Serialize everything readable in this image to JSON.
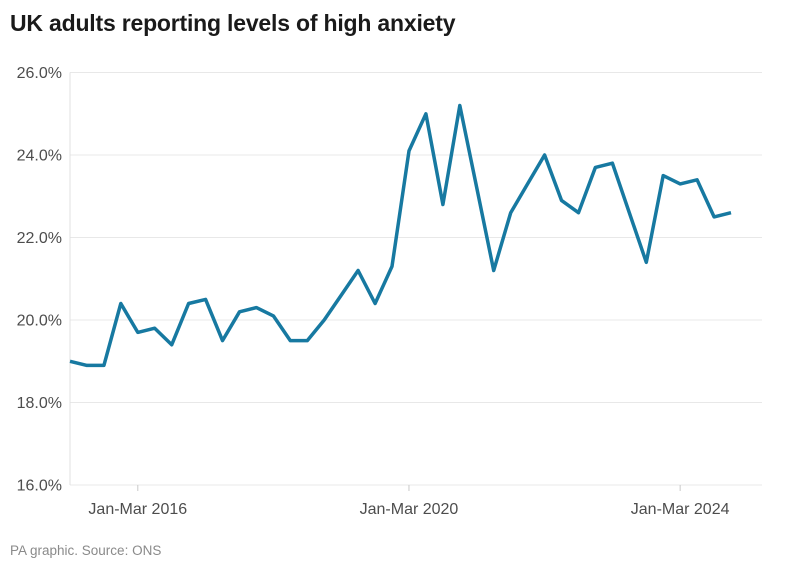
{
  "page": {
    "title": "UK adults reporting levels of high anxiety",
    "footer": "PA graphic. Source: ONS"
  },
  "colors": {
    "line": "#1779a1",
    "grid": "#e8e8e8",
    "axis_line": "#e0e0e0",
    "tick_mark": "#c9c9c9",
    "axis_text": "#4d4d4d",
    "title_text": "#1a1a1a",
    "footer_text": "#8a8a8a",
    "background": "#ffffff"
  },
  "chart_data": {
    "type": "line",
    "title": "UK adults reporting levels of high anxiety",
    "xlabel": "",
    "ylabel": "",
    "y_unit": "%",
    "ylim": [
      16.0,
      26.0
    ],
    "grid": "horizontal",
    "legend": "none",
    "frequency": "quarterly",
    "y_ticks": [
      26,
      24,
      22,
      20,
      18,
      16
    ],
    "y_tick_labels": [
      "26.0%",
      "24.0%",
      "22.0%",
      "20.0%",
      "18.0%",
      "16.0%"
    ],
    "x_tick_labels": [
      "Jan-Mar 2016",
      "Jan-Mar 2020",
      "Jan-Mar 2024"
    ],
    "categories": [
      "Jan-Mar 2015",
      "Apr-Jun 2015",
      "Jul-Sep 2015",
      "Oct-Dec 2015",
      "Jan-Mar 2016",
      "Apr-Jun 2016",
      "Jul-Sep 2016",
      "Oct-Dec 2016",
      "Jan-Mar 2017",
      "Apr-Jun 2017",
      "Jul-Sep 2017",
      "Oct-Dec 2017",
      "Jan-Mar 2018",
      "Apr-Jun 2018",
      "Jul-Sep 2018",
      "Oct-Dec 2018",
      "Jan-Mar 2019",
      "Apr-Jun 2019",
      "Jul-Sep 2019",
      "Oct-Dec 2019",
      "Jan-Mar 2020",
      "Apr-Jun 2020",
      "Jul-Sep 2020",
      "Oct-Dec 2020",
      "Jan-Mar 2021",
      "Apr-Jun 2021",
      "Jul-Sep 2021",
      "Oct-Dec 2021",
      "Jan-Mar 2022",
      "Apr-Jun 2022",
      "Jul-Sep 2022",
      "Oct-Dec 2022",
      "Jan-Mar 2023",
      "Apr-Jun 2023",
      "Jul-Sep 2023",
      "Oct-Dec 2023",
      "Jan-Mar 2024",
      "Apr-Jun 2024",
      "Jul-Sep 2024",
      "Oct-Dec 2024"
    ],
    "values": [
      19.0,
      18.9,
      18.9,
      20.4,
      19.7,
      19.8,
      19.4,
      20.4,
      20.5,
      19.5,
      20.2,
      20.3,
      20.1,
      19.5,
      19.5,
      20.0,
      20.6,
      21.2,
      20.4,
      21.3,
      24.1,
      25.0,
      22.8,
      25.2,
      23.2,
      21.2,
      22.6,
      23.3,
      24.0,
      22.9,
      22.6,
      23.7,
      23.8,
      22.6,
      21.4,
      23.5,
      23.3,
      23.4,
      22.5,
      22.6
    ]
  }
}
